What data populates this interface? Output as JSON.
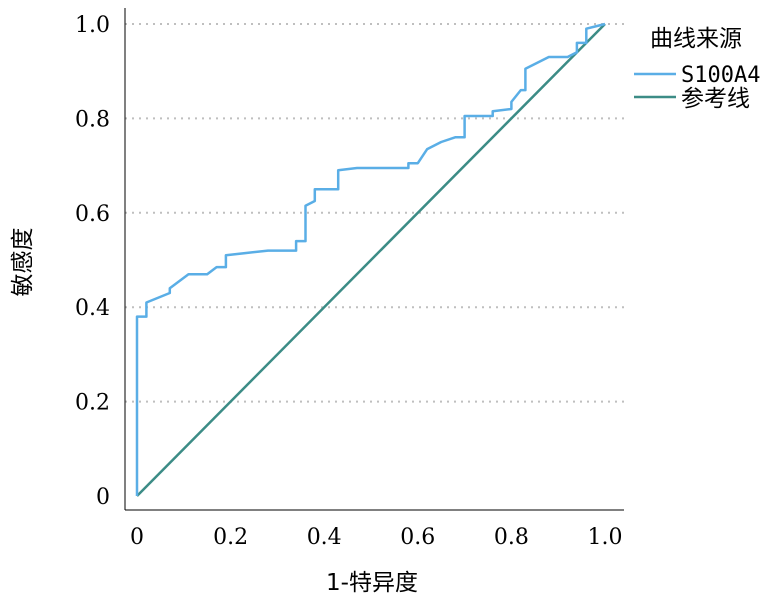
{
  "chart_data": {
    "type": "line",
    "xlabel": "1-特异度",
    "ylabel": "敏感度",
    "xlim": [
      0,
      1
    ],
    "ylim": [
      0,
      1
    ],
    "x_ticks": [
      "0",
      "0.2",
      "0.4",
      "0.6",
      "0.8",
      "1.0"
    ],
    "y_ticks": [
      "0",
      "0.2",
      "0.4",
      "0.6",
      "0.8",
      "1.0"
    ],
    "grid": "horizontal dotted",
    "legend": {
      "title": "曲线来源",
      "placement": "top-right",
      "entries": [
        "S100A4",
        "参考线"
      ]
    },
    "series": [
      {
        "name": "S100A4",
        "color": "#5aaee6",
        "points": [
          [
            0.0,
            0.0
          ],
          [
            0.0,
            0.38
          ],
          [
            0.02,
            0.38
          ],
          [
            0.02,
            0.41
          ],
          [
            0.07,
            0.43
          ],
          [
            0.07,
            0.44
          ],
          [
            0.11,
            0.47
          ],
          [
            0.15,
            0.47
          ],
          [
            0.17,
            0.485
          ],
          [
            0.19,
            0.485
          ],
          [
            0.19,
            0.51
          ],
          [
            0.28,
            0.52
          ],
          [
            0.34,
            0.52
          ],
          [
            0.34,
            0.54
          ],
          [
            0.36,
            0.54
          ],
          [
            0.36,
            0.615
          ],
          [
            0.38,
            0.625
          ],
          [
            0.38,
            0.65
          ],
          [
            0.43,
            0.65
          ],
          [
            0.43,
            0.69
          ],
          [
            0.47,
            0.695
          ],
          [
            0.58,
            0.695
          ],
          [
            0.58,
            0.705
          ],
          [
            0.6,
            0.705
          ],
          [
            0.62,
            0.735
          ],
          [
            0.65,
            0.75
          ],
          [
            0.68,
            0.76
          ],
          [
            0.7,
            0.76
          ],
          [
            0.7,
            0.805
          ],
          [
            0.76,
            0.805
          ],
          [
            0.76,
            0.815
          ],
          [
            0.8,
            0.82
          ],
          [
            0.8,
            0.835
          ],
          [
            0.82,
            0.86
          ],
          [
            0.83,
            0.86
          ],
          [
            0.83,
            0.905
          ],
          [
            0.88,
            0.93
          ],
          [
            0.92,
            0.93
          ],
          [
            0.94,
            0.94
          ],
          [
            0.94,
            0.96
          ],
          [
            0.96,
            0.96
          ],
          [
            0.96,
            0.99
          ],
          [
            0.98,
            0.995
          ],
          [
            1.0,
            1.0
          ]
        ]
      },
      {
        "name": "参考线",
        "color": "#3c8c86",
        "points": [
          [
            0,
            0
          ],
          [
            1,
            1
          ]
        ]
      }
    ]
  }
}
